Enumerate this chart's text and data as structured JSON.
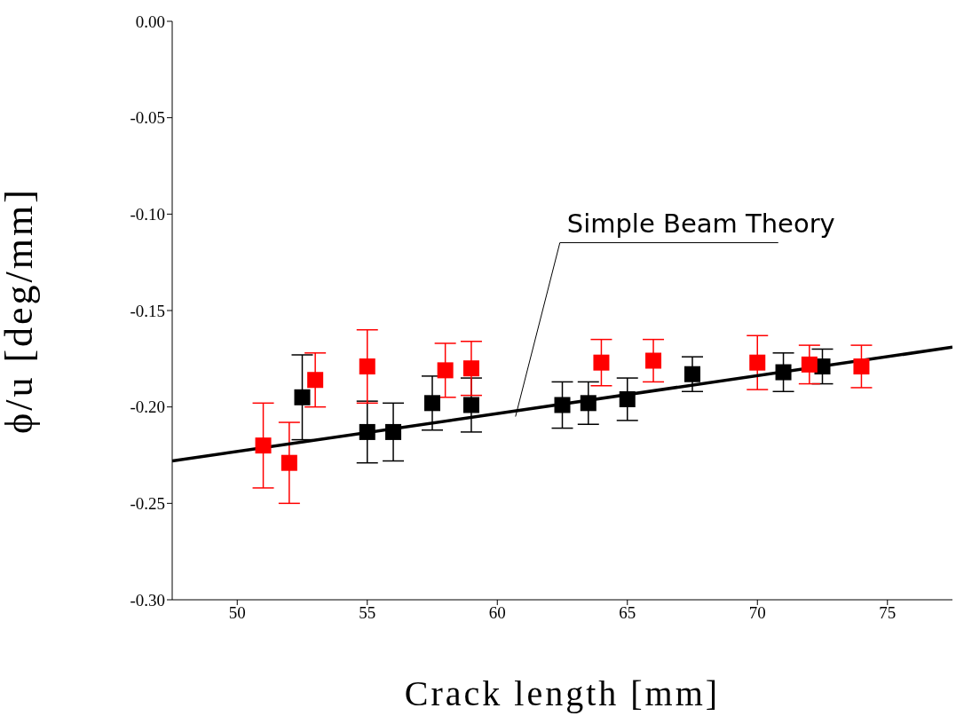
{
  "chart_data": {
    "type": "scatter",
    "xlabel": "Crack length [mm]",
    "ylabel": "ϕ/u [deg/mm]",
    "xlim": [
      47.5,
      77.5
    ],
    "xticks": [
      50,
      55,
      60,
      65,
      70,
      75
    ],
    "ylim": [
      -0.3,
      0
    ],
    "yticks": [
      {
        "value": -0.3,
        "label": "-0.30"
      },
      {
        "value": -0.25,
        "label": "-0.25"
      },
      {
        "value": -0.2,
        "label": "-0.20"
      },
      {
        "value": -0.15,
        "label": "-0.15"
      },
      {
        "value": -0.1,
        "label": "-0.10"
      },
      {
        "value": -0.05,
        "label": "-0.05"
      },
      {
        "value": 0,
        "label": "0.00"
      }
    ],
    "marker": "square",
    "grid": false,
    "series": [
      {
        "type": "line",
        "marker": "none",
        "color": "#000000",
        "x": [
          47.5,
          77.5
        ],
        "values": [
          -0.228,
          -0.169
        ]
      },
      {
        "color": "#000000",
        "x": [
          52.5,
          55,
          56,
          57.5,
          59,
          62.5,
          63.5,
          65,
          67.5,
          71,
          72.5
        ],
        "values": [
          -0.195,
          -0.213,
          -0.213,
          -0.198,
          -0.199,
          -0.199,
          -0.198,
          -0.196,
          -0.183,
          -0.182,
          -0.179
        ],
        "errors": [
          0.022,
          0.016,
          0.015,
          0.014,
          0.014,
          0.012,
          0.011,
          0.011,
          0.009,
          0.01,
          0.009
        ]
      },
      {
        "color": "#ff0000",
        "x": [
          51,
          52,
          53,
          55,
          58,
          59,
          64,
          66,
          70,
          72,
          74
        ],
        "values": [
          -0.22,
          -0.229,
          -0.186,
          -0.179,
          -0.181,
          -0.18,
          -0.177,
          -0.176,
          -0.177,
          -0.178,
          -0.179
        ],
        "errors": [
          0.022,
          0.021,
          0.014,
          0.019,
          0.014,
          0.014,
          0.012,
          0.011,
          0.014,
          0.01,
          0.011
        ]
      }
    ],
    "annotations": [
      {
        "text": "Simple Beam Theory",
        "x": 60.7,
        "y": -0.205
      }
    ]
  }
}
